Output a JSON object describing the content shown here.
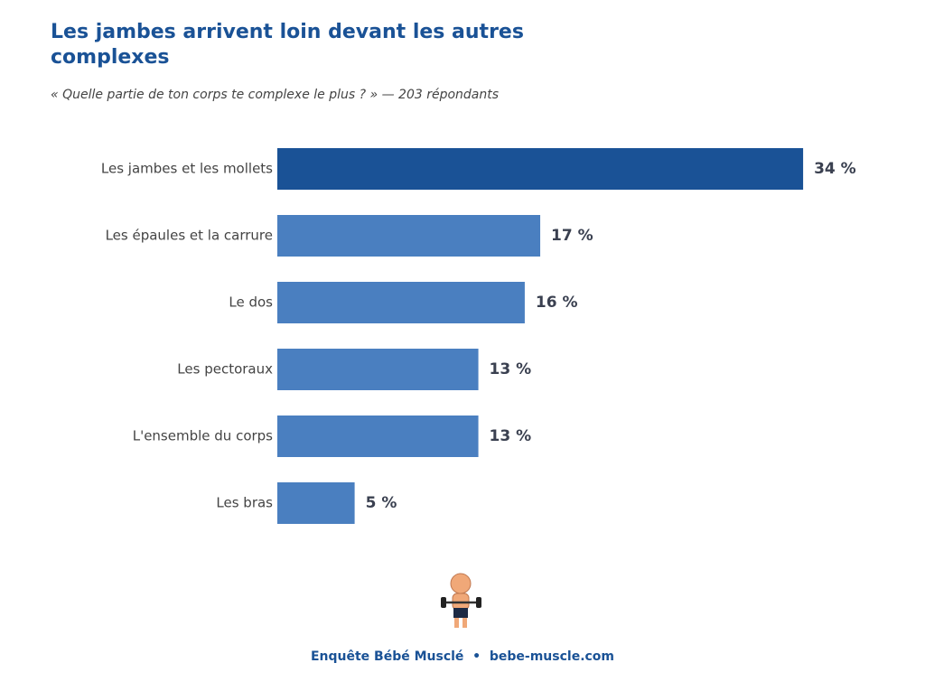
{
  "chart_data": {
    "type": "hbar",
    "title": "Les jambes arrivent loin devant les autres complexes",
    "subtitle": "« Quelle partie de ton corps te complexe le plus ? » — 203 répondants",
    "categories": [
      "Les jambes et les mollets",
      "Les épaules et la carrure",
      "Le dos",
      "Les pectoraux",
      "L'ensemble du corps",
      "Les bras"
    ],
    "values": [
      34,
      17,
      16,
      13,
      13,
      5
    ],
    "value_labels": [
      "34 %",
      "17 %",
      "16 %",
      "13 %",
      "13 %",
      "5 %"
    ],
    "colors": [
      "#1a5296",
      "#4a7fc0",
      "#4a7fc0",
      "#4a7fc0",
      "#4a7fc0",
      "#4a7fc0"
    ],
    "footer": "Enquête Bébé Musclé  •  bebe-muscle.com"
  }
}
